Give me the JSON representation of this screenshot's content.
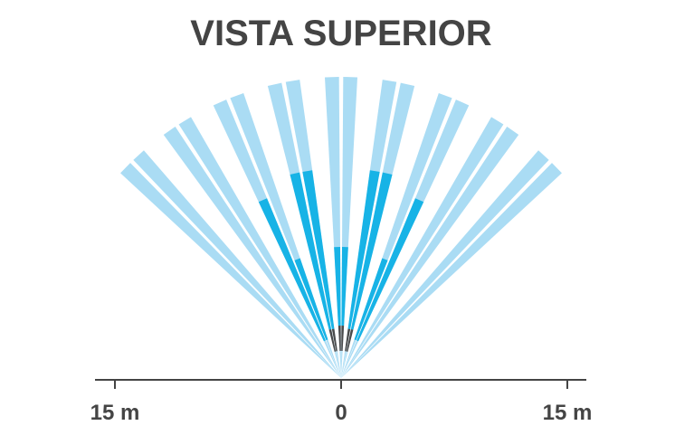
{
  "title": "VISTA SUPERIOR",
  "axis_labels": [
    "15 m",
    "0",
    "15 m"
  ]
}
